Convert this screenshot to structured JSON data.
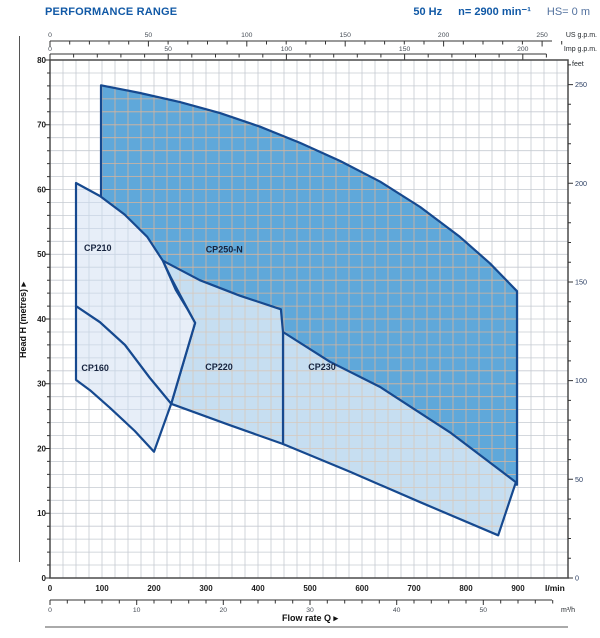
{
  "header": {
    "title": "PERFORMANCE RANGE",
    "frequency": "50 Hz",
    "speed": "n= 2900 min⁻¹",
    "suction_head": "HS= 0 m"
  },
  "colors": {
    "accent_blue": "#1159a6",
    "region_stroke": "#16498f",
    "plot_border": "#4a4a4a",
    "grid_base": "#c6cbd2",
    "rule": "#555555"
  },
  "chart_data": {
    "type": "area",
    "title": "PERFORMANCE RANGE",
    "grid": "on",
    "x_axis": {
      "label": "Flow rate Q ▸",
      "unit": "l/min",
      "range_lmin": [
        0,
        996
      ],
      "labels_lmin": [
        0,
        100,
        200,
        300,
        400,
        500,
        600,
        700,
        800,
        900
      ],
      "bottom_scale": {
        "unit": "m³/h",
        "lmin_per_unit": 16.667,
        "labels": [
          0,
          10,
          20,
          30,
          40,
          50
        ],
        "minor_step": 2,
        "max": 58
      },
      "top_scales": [
        {
          "unit": "US g.p.m.",
          "lmin_per_unit": 3.785,
          "labels": [
            0,
            50,
            100,
            150,
            200,
            250
          ],
          "minor_step": 10,
          "max": 260
        },
        {
          "unit": "Imp g.p.m.",
          "lmin_per_unit": 4.546,
          "labels": [
            0,
            50,
            100,
            150,
            200
          ],
          "minor_step": 10,
          "max": 210
        }
      ]
    },
    "y_axis": {
      "label": "Head H (metres) ▸",
      "unit": "m",
      "range_m": [
        0,
        80
      ],
      "labels_m": [
        0,
        10,
        20,
        30,
        40,
        50,
        60,
        70,
        80
      ],
      "minor_step_m": 2,
      "right_scale": {
        "unit": "feet",
        "m_per_unit": 0.3048,
        "labels": [
          0,
          50,
          100,
          150,
          200,
          250
        ],
        "minor_step": 10,
        "max": 260
      }
    },
    "series": [
      {
        "id": "cp250-n",
        "name": "CP250-N",
        "fill": "#5fa8da",
        "grid_color": "#d6b49c",
        "label_at": [
          335,
          50.7
        ],
        "points": [
          [
            98,
            76.1
          ],
          [
            173,
            74.9
          ],
          [
            250,
            73.5
          ],
          [
            327,
            71.8
          ],
          [
            404,
            69.7
          ],
          [
            481,
            67.2
          ],
          [
            558,
            64.4
          ],
          [
            635,
            61.2
          ],
          [
            712,
            57.3
          ],
          [
            788,
            52.7
          ],
          [
            846,
            48.6
          ],
          [
            898,
            44.3
          ],
          [
            898,
            14.4
          ],
          [
            750,
            21.3
          ],
          [
            596,
            29.0
          ],
          [
            448,
            37.1
          ],
          [
            327,
            43.7
          ],
          [
            217,
            49.0
          ],
          [
            154,
            55.0
          ],
          [
            98,
            58.8
          ]
        ]
      },
      {
        "id": "cp230",
        "name": "CP230",
        "fill": "#c6def1",
        "grid_color": "#d6c8bd",
        "label_at": [
          523,
          32.6
        ],
        "points": [
          [
            448,
            38.0
          ],
          [
            538,
            33.4
          ],
          [
            635,
            29.5
          ],
          [
            769,
            22.5
          ],
          [
            896,
            14.8
          ],
          [
            862,
            6.6
          ],
          [
            712,
            11.7
          ],
          [
            577,
            16.4
          ],
          [
            448,
            20.7
          ]
        ]
      },
      {
        "id": "cp220",
        "name": "CP220",
        "fill": "#c6def1",
        "grid_color": "#d6c8bd",
        "label_at": [
          325,
          32.6
        ],
        "points": [
          [
            217,
            49.0
          ],
          [
            288,
            46.0
          ],
          [
            365,
            43.6
          ],
          [
            444,
            41.5
          ],
          [
            448,
            38.0
          ],
          [
            448,
            20.7
          ],
          [
            346,
            23.6
          ],
          [
            233,
            26.9
          ],
          [
            279,
            39.4
          ],
          [
            255,
            43.0
          ],
          [
            233,
            46.3
          ]
        ]
      },
      {
        "id": "cp210",
        "name": "CP210",
        "fill": "#e7eef8",
        "grid_color": "#c9d4e2",
        "label_at": [
          92,
          51.0
        ],
        "points": [
          [
            50,
            61.0
          ],
          [
            96,
            59.0
          ],
          [
            144,
            56.1
          ],
          [
            187,
            52.7
          ],
          [
            217,
            49.0
          ],
          [
            242,
            44.5
          ],
          [
            263,
            41.7
          ],
          [
            279,
            39.4
          ],
          [
            233,
            26.9
          ],
          [
            192,
            30.9
          ],
          [
            144,
            36.0
          ],
          [
            96,
            39.5
          ],
          [
            50,
            42.0
          ]
        ]
      },
      {
        "id": "cp160",
        "name": "CP160",
        "fill": "#e7eef8",
        "grid_color": "#c9d4e2",
        "label_at": [
          87,
          32.4
        ],
        "points": [
          [
            50,
            42.0
          ],
          [
            96,
            39.5
          ],
          [
            144,
            36.0
          ],
          [
            192,
            30.9
          ],
          [
            233,
            26.9
          ],
          [
            200,
            19.5
          ],
          [
            163,
            22.7
          ],
          [
            115,
            26.3
          ],
          [
            77,
            29.0
          ],
          [
            50,
            30.6
          ]
        ]
      }
    ]
  }
}
